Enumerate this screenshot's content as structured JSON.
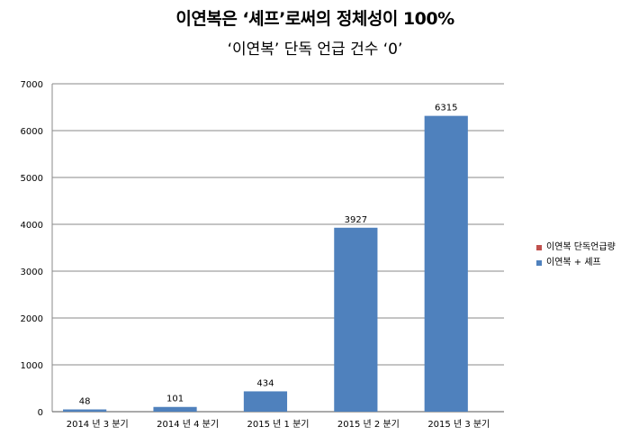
{
  "chart_data": {
    "type": "bar",
    "title": "이연복은 ‘셰프’로써의 정체성이 100%",
    "subtitle": "‘이연복’ 단독 언급 건수 ‘0’",
    "categories": [
      "2014 년  3 분기",
      "2014 년  4 분기",
      "2015 년  1 분기",
      "2015 년  2 분기",
      "2015 년  3 분기"
    ],
    "series": [
      {
        "name": "이연복 단독언급량",
        "values": [
          0,
          0,
          0,
          0,
          0
        ],
        "color": "#c0504d"
      },
      {
        "name": "이연복 + 셰프",
        "values": [
          48,
          101,
          434,
          3927,
          6315
        ],
        "color": "#4f81bd"
      }
    ],
    "data_labels": [
      "48",
      "101",
      "434",
      "3927",
      "6315"
    ],
    "ylim": [
      0,
      7000
    ],
    "yticks": [
      0,
      1000,
      2000,
      3000,
      4000,
      5000,
      6000,
      7000
    ],
    "grid": true,
    "legend": "right"
  }
}
